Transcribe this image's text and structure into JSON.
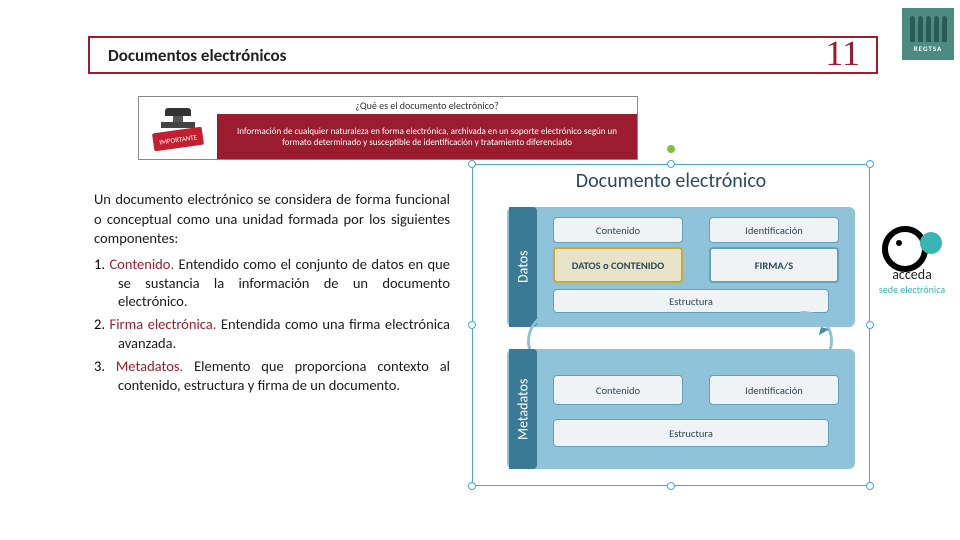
{
  "title": "Documentos electrónicos",
  "page_number": "11",
  "header": {
    "stamp_label": "IMPORTANTE",
    "question": "¿Qué es el documento electrónico?",
    "definition": "Información de cualquier naturaleza en forma electrónica, archivada en un soporte electrónico según un formato determinado y susceptible de identificación y tratamiento diferenciado"
  },
  "intro": "Un documento electrónico se considera de forma funcional o conceptual como una unidad formada por los siguientes componentes:",
  "items": [
    {
      "n": "1.",
      "term": "Contenido.",
      "desc": " Entendido como el conjunto de datos en que se sustancia la información de un documento electrónico."
    },
    {
      "n": "2.",
      "term": "Firma electrónica.",
      "desc": " Entendida como una firma electrónica avanzada."
    },
    {
      "n": "3.",
      "term": "Metadatos.",
      "desc": " Elemento que proporciona contexto al contenido, estructura y firma de un documento."
    }
  ],
  "diagram": {
    "title": "Documento electrónico",
    "datos": {
      "vlabel": "Datos",
      "top_l": "Contenido",
      "top_r": "Identificación",
      "mid_l": "DATOS o CONTENIDO",
      "mid_r": "FIRMA/S",
      "bot": "Estructura"
    },
    "meta": {
      "vlabel": "Metadatos",
      "top_l": "Contenido",
      "top_r": "Identificación",
      "bot": "Estructura"
    }
  },
  "logos": {
    "regtsa": "REGTSA",
    "acceda_word": "acceda",
    "acceda_sub": "sede electrónica"
  },
  "colors": {
    "accent": "#9a1c2e",
    "diag_blue": "#8fc3d9",
    "diag_dark": "#3b7a94",
    "teal": "#3bb4b4"
  }
}
